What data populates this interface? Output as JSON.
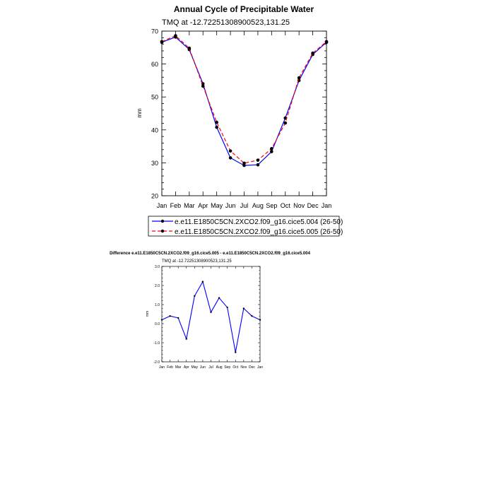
{
  "chart_data": [
    {
      "type": "line",
      "title": "Annual Cycle of Precipitable Water",
      "subtitle": "TMQ at -12.72251308900523,131.25",
      "xlabel": "",
      "ylabel": "mm",
      "categories": [
        "Jan",
        "Feb",
        "Mar",
        "Apr",
        "May",
        "Jun",
        "Jul",
        "Aug",
        "Sep",
        "Oct",
        "Nov",
        "Dec",
        "Jan"
      ],
      "yticks": [
        "20",
        "30",
        "40",
        "50",
        "60",
        "70"
      ],
      "ylim": [
        20,
        70
      ],
      "grid": false,
      "legend_position": "bottom",
      "series": [
        {
          "name": "e.e11.E1850C5CN.2XCO2.f09_g16.cice5.004 (26-50)",
          "color": "#0000ff",
          "line_style": "solid",
          "values": [
            66.6,
            68.2,
            64.4,
            54.0,
            40.8,
            31.5,
            29.2,
            29.4,
            33.4,
            43.6,
            55.0,
            62.9,
            66.6
          ]
        },
        {
          "name": "e.e11.E1850C5CN.2XCO2.f09_g16.cice5.005 (26-50)",
          "color": "#ff0000",
          "line_style": "dashed",
          "values": [
            66.8,
            68.6,
            64.8,
            53.3,
            42.3,
            33.6,
            29.9,
            30.8,
            34.3,
            42.1,
            55.8,
            63.3,
            66.8
          ]
        }
      ]
    },
    {
      "type": "line",
      "title": "Difference e.e11.E1850C5CN.2XCO2.f09_g16.cice5.005 - e.e11.E1850C5CN.2XCO2.f09_g16.cice5.004",
      "subtitle": "TMQ at -12.72251308900523,131.25",
      "xlabel": "",
      "ylabel": "mm",
      "categories": [
        "Jan",
        "Feb",
        "Mar",
        "Apr",
        "May",
        "Jun",
        "Jul",
        "Aug",
        "Sep",
        "Oct",
        "Nov",
        "Dec",
        "Jan"
      ],
      "yticks": [
        "-2.0",
        "-1.0",
        "0.0",
        "1.0",
        "2.0",
        "3.0"
      ],
      "ylim": [
        -2.0,
        3.0
      ],
      "grid": false,
      "series": [
        {
          "name": "Difference",
          "color": "#0000ff",
          "line_style": "solid",
          "values": [
            0.2,
            0.4,
            0.3,
            -0.8,
            1.45,
            2.2,
            0.6,
            1.35,
            0.85,
            -1.5,
            0.8,
            0.4,
            0.2
          ]
        }
      ]
    }
  ]
}
